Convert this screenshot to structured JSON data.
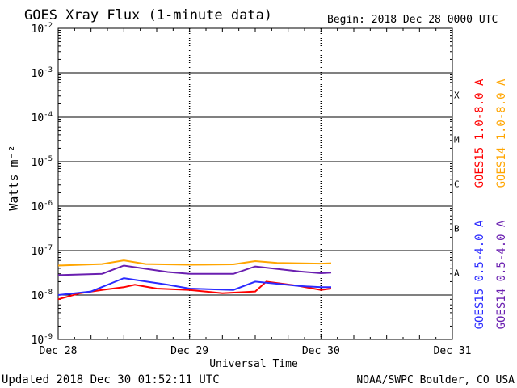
{
  "title": "GOES Xray Flux (1-minute data)",
  "begin_label": "Begin:  2018 Dec 28 0000 UTC",
  "footer_left": "Updated 2018 Dec 30 01:52:11 UTC",
  "footer_right": "NOAA/SWPC Boulder, CO USA",
  "colors": {
    "goes15_long": "#ff0000",
    "goes14_long": "#ffa500",
    "goes15_short": "#2b2bff",
    "goes14_short": "#6a1fb0",
    "grid": "#000000"
  },
  "chart_data": {
    "type": "line",
    "title": "GOES Xray Flux (1-minute data)",
    "xlabel": "Universal Time",
    "ylabel": "Watts m⁻²",
    "y_scale": "log",
    "ylim": [
      1e-09,
      0.01
    ],
    "xlim": [
      "2018-12-28 00:00",
      "2018-12-31 00:00"
    ],
    "x_ticks": [
      "Dec 28",
      "Dec 29",
      "Dec 30",
      "Dec 31"
    ],
    "y_ticks": [
      {
        "base": "10",
        "exp": "-2",
        "value": 0.01
      },
      {
        "base": "10",
        "exp": "-3",
        "value": 0.001
      },
      {
        "base": "10",
        "exp": "-4",
        "value": 0.0001
      },
      {
        "base": "10",
        "exp": "-5",
        "value": 1e-05
      },
      {
        "base": "10",
        "exp": "-6",
        "value": 1e-06
      },
      {
        "base": "10",
        "exp": "-7",
        "value": 1e-07
      },
      {
        "base": "10",
        "exp": "-8",
        "value": 1e-08
      },
      {
        "base": "10",
        "exp": "-9",
        "value": 1e-09
      }
    ],
    "flare_classes": [
      {
        "label": "X",
        "value": 0.000316
      },
      {
        "label": "M",
        "value": 3.16e-05
      },
      {
        "label": "C",
        "value": 3.16e-06
      },
      {
        "label": "B",
        "value": 3.16e-07
      },
      {
        "label": "A",
        "value": 3.16e-08
      }
    ],
    "grid": true,
    "legend_position": "right",
    "series": [
      {
        "name": "GOES15 1.0-8.0 A",
        "color_key": "goes15_long",
        "x": [
          "2018-12-28 00:00",
          "2018-12-28 04:00",
          "2018-12-28 08:00",
          "2018-12-28 12:00",
          "2018-12-28 14:00",
          "2018-12-28 18:00",
          "2018-12-29 00:00",
          "2018-12-29 06:00",
          "2018-12-29 12:00",
          "2018-12-29 14:00",
          "2018-12-29 20:00",
          "2018-12-30 00:00",
          "2018-12-30 01:52"
        ],
        "y": [
          8e-09,
          1.1e-08,
          1.3e-08,
          1.5e-08,
          1.7e-08,
          1.4e-08,
          1.3e-08,
          1.1e-08,
          1.2e-08,
          2e-08,
          1.6e-08,
          1.3e-08,
          1.4e-08
        ]
      },
      {
        "name": "GOES14 1.0-8.0 A",
        "color_key": "goes14_long",
        "x": [
          "2018-12-28 00:00",
          "2018-12-28 08:00",
          "2018-12-28 12:00",
          "2018-12-28 16:00",
          "2018-12-29 00:00",
          "2018-12-29 08:00",
          "2018-12-29 12:00",
          "2018-12-29 16:00",
          "2018-12-30 00:00",
          "2018-12-30 01:52"
        ],
        "y": [
          4.6e-08,
          5e-08,
          6e-08,
          5e-08,
          4.8e-08,
          4.9e-08,
          5.8e-08,
          5.3e-08,
          5.1e-08,
          5.2e-08
        ]
      },
      {
        "name": "GOES15 0.5-4.0 A",
        "color_key": "goes15_short",
        "x": [
          "2018-12-28 00:00",
          "2018-12-28 06:00",
          "2018-12-28 12:00",
          "2018-12-28 20:00",
          "2018-12-29 00:00",
          "2018-12-29 08:00",
          "2018-12-29 12:00",
          "2018-12-29 20:00",
          "2018-12-30 00:00",
          "2018-12-30 01:52"
        ],
        "y": [
          1e-08,
          1.2e-08,
          2.4e-08,
          1.7e-08,
          1.4e-08,
          1.3e-08,
          2e-08,
          1.6e-08,
          1.5e-08,
          1.5e-08
        ]
      },
      {
        "name": "GOES14 0.5-4.0 A",
        "color_key": "goes14_short",
        "x": [
          "2018-12-28 00:00",
          "2018-12-28 08:00",
          "2018-12-28 12:00",
          "2018-12-28 20:00",
          "2018-12-29 00:00",
          "2018-12-29 08:00",
          "2018-12-29 12:00",
          "2018-12-29 20:00",
          "2018-12-30 00:00",
          "2018-12-30 01:52"
        ],
        "y": [
          2.8e-08,
          3e-08,
          4.6e-08,
          3.3e-08,
          3e-08,
          3e-08,
          4.4e-08,
          3.4e-08,
          3.1e-08,
          3.2e-08
        ]
      }
    ]
  }
}
